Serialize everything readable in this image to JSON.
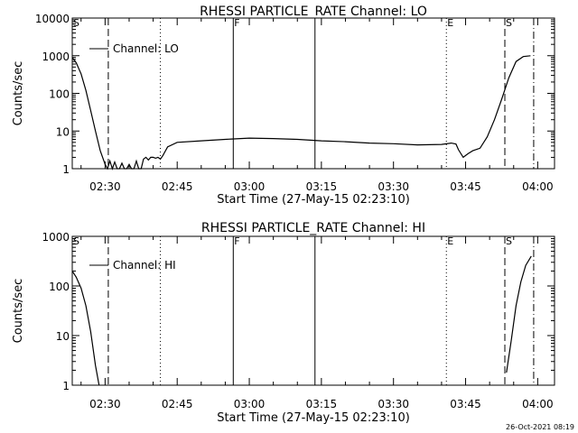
{
  "chart_data": [
    {
      "type": "line",
      "title": "RHESSI PARTICLE_RATE Channel: LO",
      "xlabel": "Start Time (27-May-15 02:23:10)",
      "ylabel": "Counts/sec",
      "y_scale": "log",
      "ylim": [
        1,
        10000
      ],
      "xlim": [
        "02:23:10",
        "04:03:30"
      ],
      "x_tick_labels": [
        "02:30",
        "02:45",
        "03:00",
        "03:15",
        "03:30",
        "03:45",
        "04:00"
      ],
      "y_tick_labels": [
        "1",
        "10",
        "100",
        "1000",
        "10000"
      ],
      "legend": {
        "label": "Channel: LO",
        "placement": "top-left"
      },
      "series": [
        {
          "name": "Channel: LO",
          "x": [
            "02:23:10",
            "02:24:00",
            "02:25:00",
            "02:26:00",
            "02:27:00",
            "02:28:00",
            "02:29:00",
            "02:30:00",
            "02:30:30",
            "02:31:00",
            "02:31:30",
            "02:32:00",
            "02:32:30",
            "02:33:00",
            "02:33:30",
            "02:34:00",
            "02:34:30",
            "02:35:00",
            "02:35:30",
            "02:36:00",
            "02:36:30",
            "02:37:00",
            "02:37:30",
            "02:38:00",
            "02:38:30",
            "02:39:00",
            "02:39:30",
            "02:40:00",
            "02:40:30",
            "02:41:00",
            "02:41:30",
            "02:42:00",
            "02:43:00",
            "02:45:00",
            "02:50:00",
            "02:55:00",
            "03:00:00",
            "03:05:00",
            "03:10:00",
            "03:15:00",
            "03:20:00",
            "03:25:00",
            "03:30:00",
            "03:35:00",
            "03:40:00",
            "03:42:00",
            "03:43:00",
            "03:43:30",
            "03:44:30",
            "03:45:30",
            "03:46:30",
            "03:48:00",
            "03:49:30",
            "03:51:00",
            "03:52:30",
            "03:54:00",
            "03:55:30",
            "03:57:00",
            "03:58:30"
          ],
          "y": [
            900,
            650,
            330,
            120,
            35,
            10,
            3,
            1.3,
            1,
            1.6,
            1,
            1.5,
            1,
            1,
            1.4,
            1,
            1,
            1.3,
            1,
            1,
            1.6,
            1,
            1,
            1.8,
            2,
            1.7,
            2,
            2,
            1.9,
            2,
            1.8,
            2.2,
            3.8,
            5,
            5.5,
            6,
            6.5,
            6.3,
            6,
            5.5,
            5.2,
            4.8,
            4.6,
            4.3,
            4.4,
            4.8,
            4.5,
            3.2,
            2,
            2.5,
            3,
            3.5,
            7,
            20,
            70,
            260,
            700,
            950,
            1000
          ]
        }
      ],
      "markers": [
        {
          "label": "S",
          "time": "02:23:10",
          "style": "dashed"
        },
        {
          "time": "02:30:40",
          "style": "dashed"
        },
        {
          "time": "02:41:30",
          "style": "dotted"
        },
        {
          "label": "F",
          "time": "02:56:40",
          "style": "solid"
        },
        {
          "time": "03:13:40",
          "style": "solid"
        },
        {
          "label": "E",
          "time": "03:41:00",
          "style": "dotted"
        },
        {
          "label": "S",
          "time": "03:53:10",
          "style": "dashed"
        },
        {
          "time": "03:59:10",
          "style": "dash-dot"
        }
      ]
    },
    {
      "type": "line",
      "title": "RHESSI PARTICLE_RATE Channel: HI",
      "xlabel": "Start Time (27-May-15 02:23:10)",
      "ylabel": "Counts/sec",
      "y_scale": "log",
      "ylim": [
        1,
        1000
      ],
      "xlim": [
        "02:23:10",
        "04:03:30"
      ],
      "x_tick_labels": [
        "02:30",
        "02:45",
        "03:00",
        "03:15",
        "03:30",
        "03:45",
        "04:00"
      ],
      "y_tick_labels": [
        "1",
        "10",
        "100",
        "1000"
      ],
      "legend": {
        "label": "Channel: HI",
        "placement": "top-left"
      },
      "series": [
        {
          "name": "Channel: HI",
          "x": [
            "02:23:10",
            "02:24:00",
            "02:25:00",
            "02:26:00",
            "02:27:00",
            "02:28:00",
            "02:28:45",
            "03:53:30",
            "03:54:30",
            "03:55:30",
            "03:56:30",
            "03:57:30",
            "03:58:40"
          ],
          "y": [
            200,
            150,
            90,
            40,
            12,
            2.5,
            1,
            1.8,
            8,
            40,
            120,
            260,
            400
          ]
        }
      ],
      "markers": [
        {
          "label": "S",
          "time": "02:23:10",
          "style": "dashed"
        },
        {
          "time": "02:30:40",
          "style": "dashed"
        },
        {
          "time": "02:41:30",
          "style": "dotted"
        },
        {
          "label": "F",
          "time": "02:56:40",
          "style": "solid"
        },
        {
          "time": "03:13:40",
          "style": "solid"
        },
        {
          "label": "E",
          "time": "03:41:00",
          "style": "dotted"
        },
        {
          "label": "S",
          "time": "03:53:10",
          "style": "dashed"
        },
        {
          "time": "03:59:10",
          "style": "dash-dot"
        }
      ]
    }
  ],
  "footer": {
    "timestamp": "26-Oct-2021 08:19"
  },
  "colors": {
    "background": "#ffffff",
    "ink": "#000000"
  }
}
